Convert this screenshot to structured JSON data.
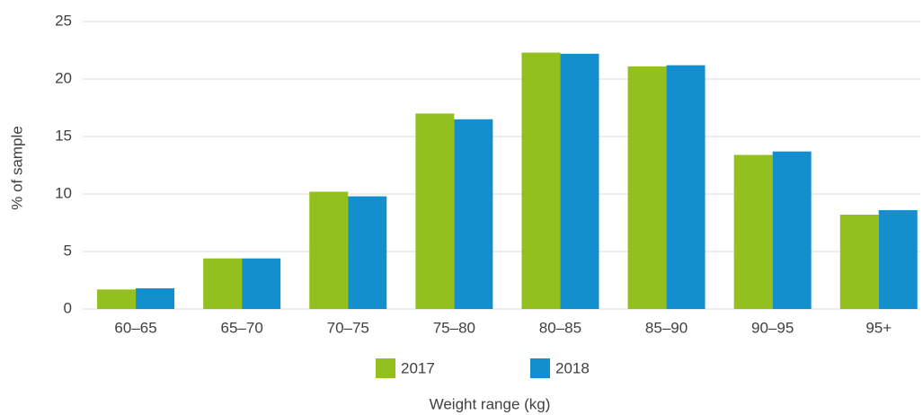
{
  "chart_data": {
    "type": "bar",
    "x_label": "Weight range (kg)",
    "y_label": "% of sample",
    "categories": [
      "60–65",
      "65–70",
      "70–75",
      "75–80",
      "80–85",
      "85–90",
      "90–95",
      "95+"
    ],
    "series": [
      {
        "name": "2017",
        "color": "#93c01f",
        "values": [
          1.7,
          4.4,
          10.2,
          17.0,
          22.3,
          21.1,
          13.4,
          8.2
        ]
      },
      {
        "name": "2018",
        "color": "#138fce",
        "values": [
          1.8,
          4.4,
          9.8,
          16.5,
          22.2,
          21.2,
          13.7,
          8.6
        ]
      }
    ],
    "ylim": [
      0,
      25
    ],
    "yticks": [
      0,
      5,
      10,
      15,
      20,
      25
    ],
    "grid": true,
    "legend": "bottom"
  }
}
